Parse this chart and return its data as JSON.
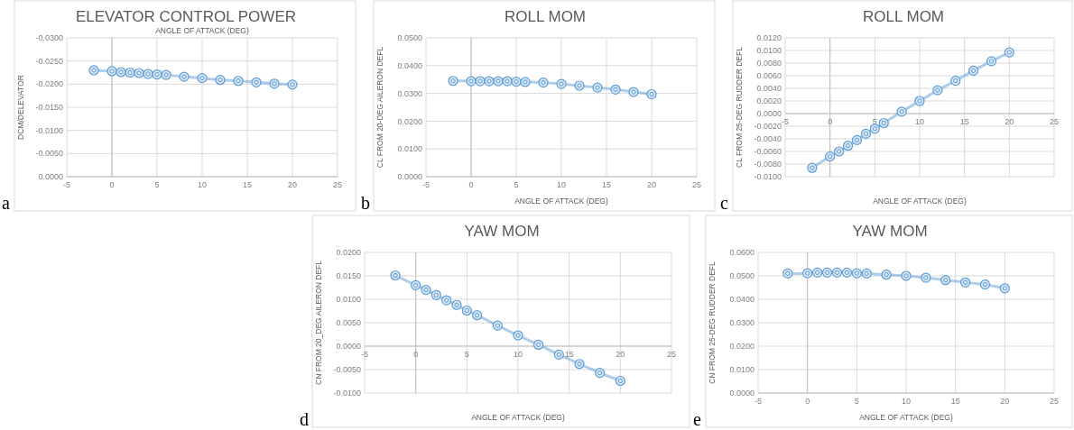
{
  "chart_data": [
    {
      "type": "line",
      "title": "ELEVATOR CONTROL POWER",
      "xlabel": "ANGLE OF ATTACK (DEG)",
      "ylabel": "DCM/DELEVATOR",
      "annotations": [
        "a"
      ],
      "x": [
        -2,
        0,
        1,
        2,
        3,
        4,
        5,
        6,
        8,
        10,
        12,
        14,
        16,
        18,
        20
      ],
      "series": [
        {
          "color": "#5b9bd5",
          "values": [
            -0.023,
            -0.0228,
            -0.0226,
            -0.0225,
            -0.0224,
            -0.0222,
            -0.0221,
            -0.022,
            -0.0216,
            -0.0213,
            -0.0209,
            -0.0207,
            -0.0204,
            -0.0201,
            -0.0199
          ]
        }
      ],
      "xlim": [
        -5,
        25
      ],
      "xticks": [
        -5,
        0,
        5,
        10,
        15,
        20,
        25
      ],
      "ylim": [
        0,
        -0.03
      ],
      "yticks": [
        {
          "value": 0,
          "label": "0.0000"
        },
        {
          "value": -0.005,
          "label": "-0.0050"
        },
        {
          "value": -0.01,
          "label": "-0.0100"
        },
        {
          "value": -0.015,
          "label": "-0.0150"
        },
        {
          "value": -0.02,
          "label": "-0.0200"
        },
        {
          "value": -0.025,
          "label": "-0.0250"
        },
        {
          "value": -0.03,
          "label": "-0.0300"
        }
      ],
      "grid": true,
      "marker": "circle",
      "line_style": "solid"
    },
    {
      "type": "line",
      "title": "ROLL MOM",
      "xlabel": "ANGLE OF ATTACK (DEG)",
      "ylabel": "CL FROM 20-DEG AILERON DEFL",
      "annotations": [
        "b"
      ],
      "x": [
        -2,
        0,
        1,
        2,
        3,
        4,
        5,
        6,
        8,
        10,
        12,
        14,
        16,
        18,
        20
      ],
      "series": [
        {
          "color": "#5b9bd5",
          "values": [
            0.0345,
            0.0344,
            0.0344,
            0.0344,
            0.0344,
            0.0344,
            0.0342,
            0.0341,
            0.0339,
            0.0334,
            0.0328,
            0.0321,
            0.0314,
            0.0305,
            0.0297
          ]
        }
      ],
      "xlim": [
        -5,
        25
      ],
      "xticks": [
        -5,
        0,
        5,
        10,
        15,
        20,
        25
      ],
      "ylim": [
        0,
        0.05
      ],
      "yticks": [
        {
          "value": 0,
          "label": "0.0000"
        },
        {
          "value": 0.01,
          "label": "0.0100"
        },
        {
          "value": 0.02,
          "label": "0.0200"
        },
        {
          "value": 0.03,
          "label": "0.0300"
        },
        {
          "value": 0.04,
          "label": "0.0400"
        },
        {
          "value": 0.05,
          "label": "0.0500"
        }
      ],
      "grid": true,
      "marker": "circle",
      "line_style": "solid"
    },
    {
      "type": "line",
      "title": "ROLL MOM",
      "xlabel": "ANGLE OF ATTACK (DEG)",
      "ylabel": "CL FROM 25-DEG RUDDER DEFL",
      "annotations": [
        "c"
      ],
      "x": [
        -2,
        0,
        1,
        2,
        3,
        4,
        5,
        6,
        8,
        10,
        12,
        14,
        16,
        18,
        20
      ],
      "series": [
        {
          "color": "#5b9bd5",
          "values": [
            -0.0086,
            -0.0068,
            -0.006,
            -0.0051,
            -0.0042,
            -0.0032,
            -0.0024,
            -0.0015,
            0.0003,
            0.002,
            0.0037,
            0.0052,
            0.0068,
            0.0083,
            0.0097
          ]
        }
      ],
      "xlim": [
        -5,
        25
      ],
      "xticks": [
        -5,
        0,
        5,
        10,
        15,
        20,
        25
      ],
      "ylim": [
        -0.01,
        0.012
      ],
      "yticks": [
        {
          "value": -0.01,
          "label": "-0.0100"
        },
        {
          "value": -0.008,
          "label": "-0.0080"
        },
        {
          "value": -0.006,
          "label": "-0.0060"
        },
        {
          "value": -0.004,
          "label": "-0.0040"
        },
        {
          "value": -0.002,
          "label": "-0.0020"
        },
        {
          "value": 0,
          "label": "0.0000"
        },
        {
          "value": 0.002,
          "label": "0.0020"
        },
        {
          "value": 0.004,
          "label": "0.0040"
        },
        {
          "value": 0.006,
          "label": "0.0060"
        },
        {
          "value": 0.008,
          "label": "0.0080"
        },
        {
          "value": 0.01,
          "label": "0.0100"
        },
        {
          "value": 0.012,
          "label": "0.0120"
        }
      ],
      "grid": true,
      "marker": "circle",
      "line_style": "solid"
    },
    {
      "type": "line",
      "title": "YAW MOM",
      "xlabel": "ANGLE OF ATTACK (DEG)",
      "ylabel": "CN FROM 20_DEG AILERON DEFL",
      "annotations": [
        "d"
      ],
      "x": [
        -2,
        0,
        1,
        2,
        3,
        4,
        5,
        6,
        8,
        10,
        12,
        14,
        16,
        18,
        20
      ],
      "series": [
        {
          "color": "#5b9bd5",
          "values": [
            0.0151,
            0.013,
            0.012,
            0.0109,
            0.0098,
            0.0088,
            0.0076,
            0.0066,
            0.0044,
            0.0023,
            0.0003,
            -0.0018,
            -0.0038,
            -0.0057,
            -0.0074
          ]
        }
      ],
      "xlim": [
        -5,
        25
      ],
      "xticks": [
        -5,
        0,
        5,
        10,
        15,
        20,
        25
      ],
      "ylim": [
        -0.01,
        0.02
      ],
      "yticks": [
        {
          "value": -0.01,
          "label": "-0.0100"
        },
        {
          "value": -0.005,
          "label": "-0.0050"
        },
        {
          "value": 0,
          "label": "0.0000"
        },
        {
          "value": 0.005,
          "label": "0.0050"
        },
        {
          "value": 0.01,
          "label": "0.0100"
        },
        {
          "value": 0.015,
          "label": "0.0150"
        },
        {
          "value": 0.02,
          "label": "0.0200"
        }
      ],
      "grid": true,
      "marker": "circle",
      "line_style": "solid"
    },
    {
      "type": "line",
      "title": "YAW MOM",
      "xlabel": "ANGLE OF ATTACK (DEG)",
      "ylabel": "CN FROM 25-DEG RUDDER DEFL",
      "annotations": [
        "e"
      ],
      "x": [
        -2,
        0,
        1,
        2,
        3,
        4,
        5,
        6,
        8,
        10,
        12,
        14,
        16,
        18,
        20
      ],
      "series": [
        {
          "color": "#5b9bd5",
          "values": [
            0.051,
            0.0511,
            0.0514,
            0.0514,
            0.0514,
            0.0514,
            0.0511,
            0.051,
            0.0505,
            0.05,
            0.0492,
            0.0482,
            0.0472,
            0.0463,
            0.0447
          ]
        }
      ],
      "xlim": [
        -5,
        25
      ],
      "xticks": [
        -5,
        0,
        5,
        10,
        15,
        20,
        25
      ],
      "ylim": [
        0,
        0.06
      ],
      "yticks": [
        {
          "value": 0,
          "label": "0.0000"
        },
        {
          "value": 0.01,
          "label": "0.0100"
        },
        {
          "value": 0.02,
          "label": "0.0200"
        },
        {
          "value": 0.03,
          "label": "0.0300"
        },
        {
          "value": 0.04,
          "label": "0.0400"
        },
        {
          "value": 0.05,
          "label": "0.0500"
        },
        {
          "value": 0.06,
          "label": "0.0600"
        }
      ],
      "grid": true,
      "marker": "circle",
      "line_style": "solid"
    }
  ]
}
